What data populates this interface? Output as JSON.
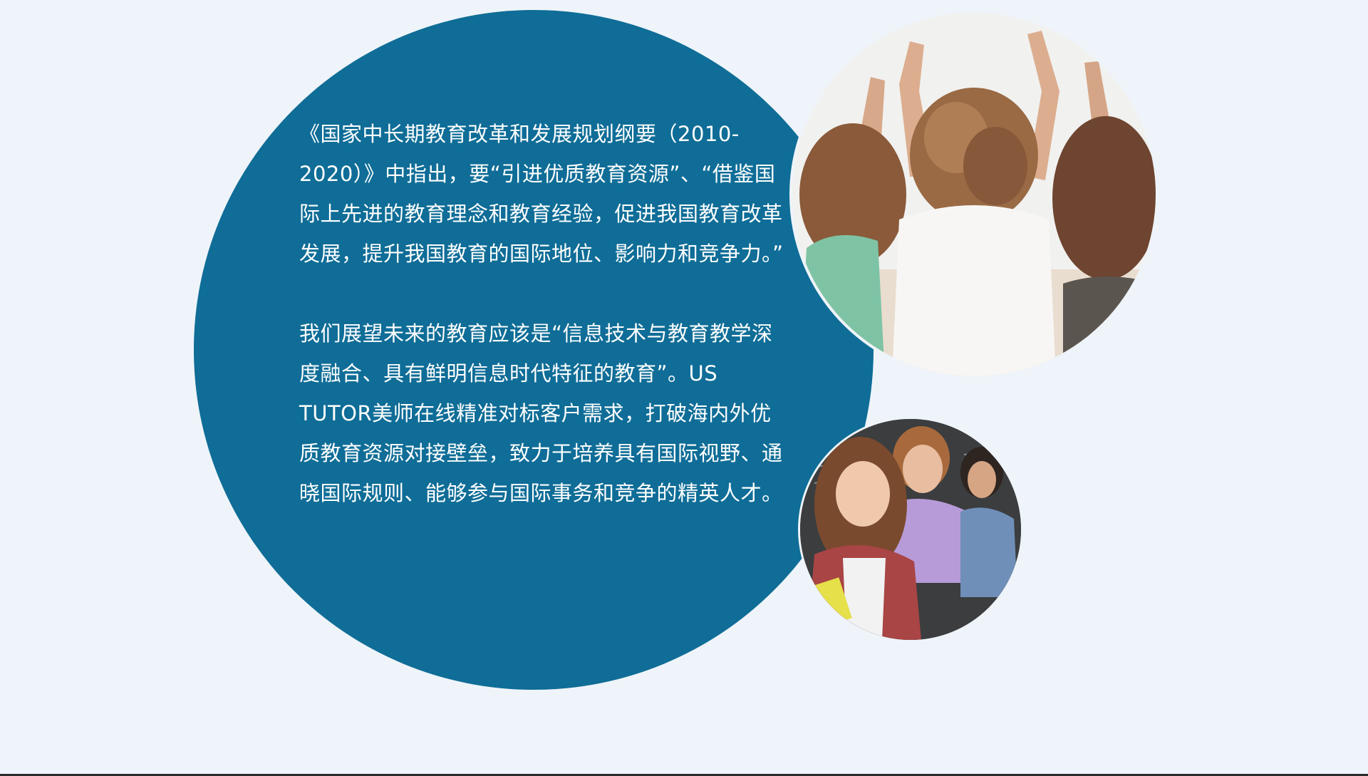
{
  "content": {
    "paragraph_1": "《国家中长期教育改革和发展规划纲要（2010-2020）》中指出，要“引进优质教育资源”、“借鉴国际上先进的教育理念和教育经验，促进我国教育改革发展，提升我国教育的国际地位、影响力和竞争力。”",
    "paragraph_2": "我们展望未来的教育应该是“信息技术与教育教学深度融合、具有鲜明信息时代特征的教育”。US TUTOR美师在线精准对标客户需求，打破海内外优质教育资源对接壁垒，致力于培养具有国际视野、通晓国际规则、能够参与国际事务和竞争的精英人才。"
  },
  "colors": {
    "background": "#eef4f9",
    "circle": "#0f6d97",
    "text": "#ffffff"
  },
  "images": {
    "top": "three-girls-arms-raised-photo",
    "bottom": "smiling-students-photo"
  }
}
